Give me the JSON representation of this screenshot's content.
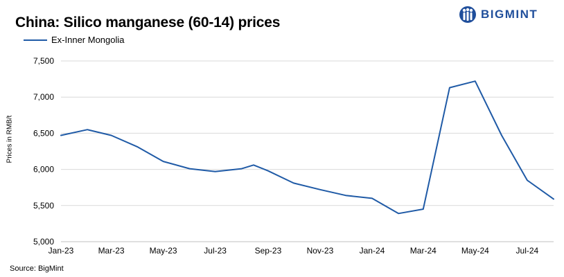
{
  "brand": {
    "name": "BIGMINT",
    "logo_icon": "bigmint-logo-icon",
    "color": "#1f4e9b"
  },
  "chart_data": {
    "type": "line",
    "title": "China: Silico manganese (60-14) prices",
    "ylabel": "Prices in RMB/t",
    "xlabel": "",
    "ylim": [
      5000,
      7500
    ],
    "yticks": [
      5000,
      5500,
      6000,
      6500,
      7000,
      7500
    ],
    "ytick_labels": [
      "5,000",
      "5,500",
      "6,000",
      "6,500",
      "7,000",
      "7,500"
    ],
    "xtick_labels": [
      "Jan-23",
      "Mar-23",
      "May-23",
      "Jul-23",
      "Sep-23",
      "Nov-23",
      "Jan-24",
      "Mar-24",
      "May-24",
      "Jul-24"
    ],
    "grid": true,
    "legend_position": "top-left",
    "series": [
      {
        "name": "Ex-Inner Mongolia",
        "color": "#1f5aa6",
        "points": [
          {
            "x": "2023-01-01",
            "y": 6470
          },
          {
            "x": "2023-02-01",
            "y": 6550
          },
          {
            "x": "2023-03-01",
            "y": 6470
          },
          {
            "x": "2023-04-01",
            "y": 6310
          },
          {
            "x": "2023-05-01",
            "y": 6110
          },
          {
            "x": "2023-06-01",
            "y": 6010
          },
          {
            "x": "2023-07-01",
            "y": 5970
          },
          {
            "x": "2023-08-01",
            "y": 6010
          },
          {
            "x": "2023-08-15",
            "y": 6060
          },
          {
            "x": "2023-09-01",
            "y": 5980
          },
          {
            "x": "2023-10-01",
            "y": 5810
          },
          {
            "x": "2023-11-01",
            "y": 5720
          },
          {
            "x": "2023-12-01",
            "y": 5640
          },
          {
            "x": "2024-01-01",
            "y": 5600
          },
          {
            "x": "2024-02-01",
            "y": 5390
          },
          {
            "x": "2024-03-01",
            "y": 5450
          },
          {
            "x": "2024-04-01",
            "y": 7130
          },
          {
            "x": "2024-05-01",
            "y": 7220
          },
          {
            "x": "2024-06-01",
            "y": 6470
          },
          {
            "x": "2024-07-01",
            "y": 5850
          },
          {
            "x": "2024-08-01",
            "y": 5590
          }
        ]
      }
    ]
  },
  "footer": {
    "source": "Source: BigMint"
  }
}
